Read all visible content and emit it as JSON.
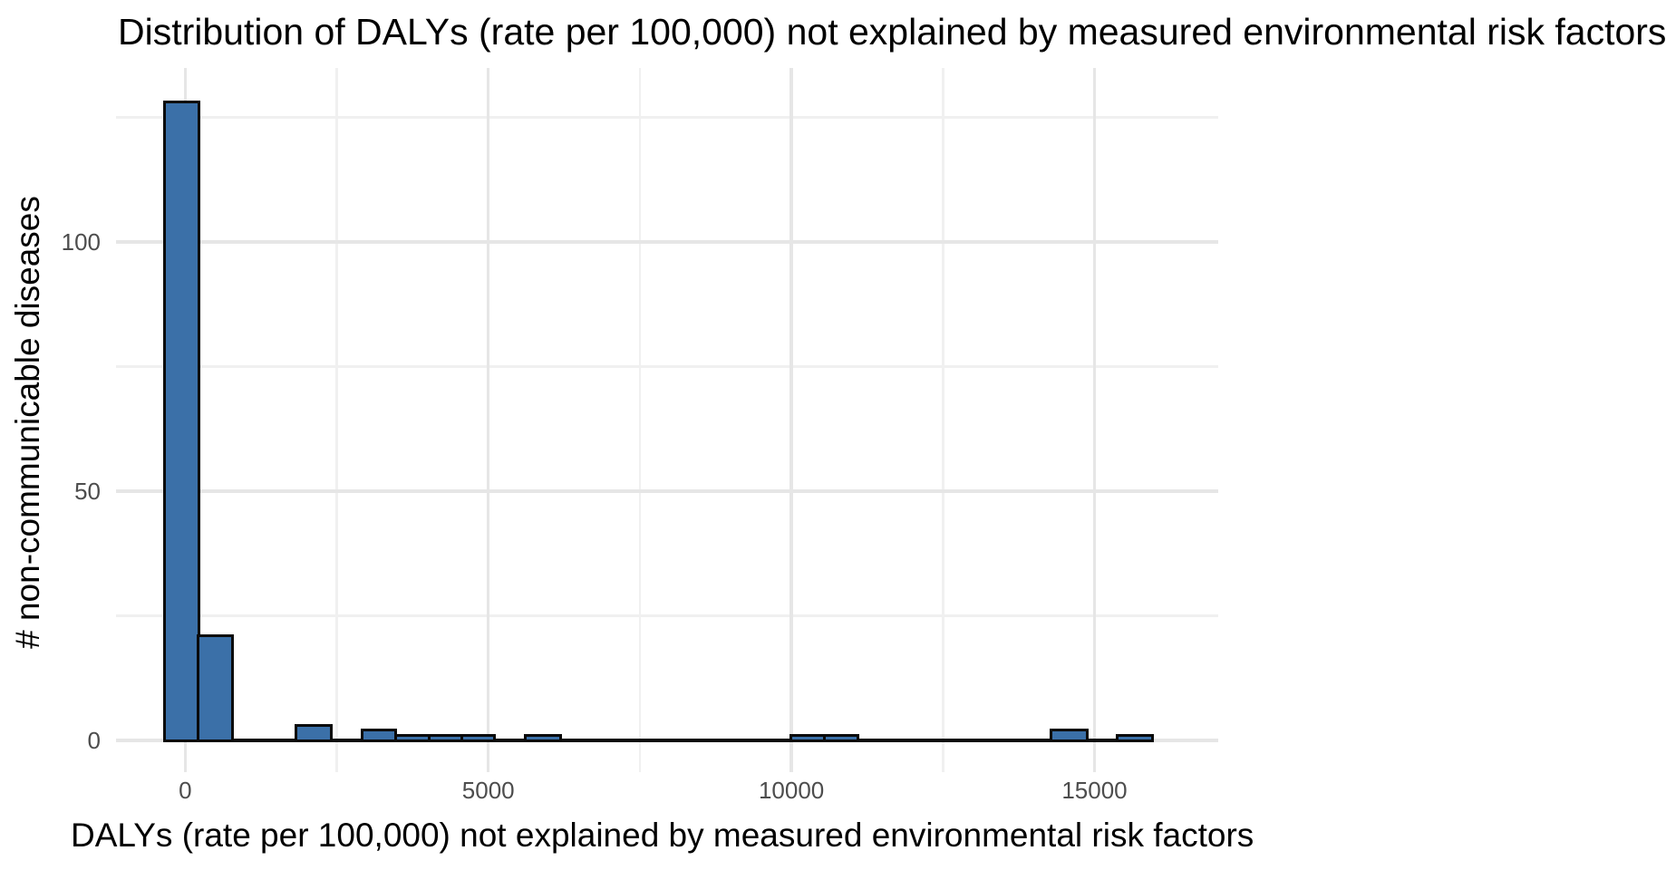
{
  "chart_data": {
    "type": "histogram",
    "title": "Distribution of DALYs (rate per 100,000) not explained by measured environmental risk factors",
    "xlabel": "DALYs (rate per 100,000) not explained by measured environmental risk factors",
    "ylabel": "# non-communicable diseases",
    "xlim": [
      -1141,
      17041
    ],
    "ylim": [
      -6.4,
      134.9
    ],
    "x_ticks": [
      {
        "value": 0,
        "label": "0"
      },
      {
        "value": 5000,
        "label": "5000"
      },
      {
        "value": 10000,
        "label": "10000"
      },
      {
        "value": 15000,
        "label": "15000"
      }
    ],
    "y_ticks": [
      {
        "value": 0,
        "label": "0"
      },
      {
        "value": 50,
        "label": "50"
      },
      {
        "value": 100,
        "label": "100"
      }
    ],
    "x_minor_gridlines": [
      2500,
      7500,
      12500
    ],
    "y_minor_gridlines": [
      25,
      75,
      125
    ],
    "grid": "on",
    "legend": "none",
    "bin_width": 555,
    "bins": [
      {
        "x0": -335,
        "x1": 220,
        "count": 128
      },
      {
        "x0": 220,
        "x1": 775,
        "count": 21
      },
      {
        "x0": 1830,
        "x1": 2400,
        "count": 3
      },
      {
        "x0": 2925,
        "x1": 3475,
        "count": 2
      },
      {
        "x0": 3475,
        "x1": 4025,
        "count": 1
      },
      {
        "x0": 4025,
        "x1": 4570,
        "count": 1
      },
      {
        "x0": 4570,
        "x1": 5095,
        "count": 1
      },
      {
        "x0": 5620,
        "x1": 6190,
        "count": 1
      },
      {
        "x0": 9990,
        "x1": 10545,
        "count": 1
      },
      {
        "x0": 10545,
        "x1": 11090,
        "count": 1
      },
      {
        "x0": 14290,
        "x1": 14870,
        "count": 2
      },
      {
        "x0": 15380,
        "x1": 15960,
        "count": 1
      }
    ],
    "zero_line": {
      "x0": -335,
      "x1": 15960
    },
    "colors": {
      "bar_fill": "#3B70A8",
      "bar_border": "#0a0a0a",
      "zero_line": "#0a0a0a",
      "grid_major": "#e6e6e6",
      "grid_minor": "#f0f0f0",
      "tick_label": "#4d4d4d",
      "title": "#000000"
    }
  }
}
